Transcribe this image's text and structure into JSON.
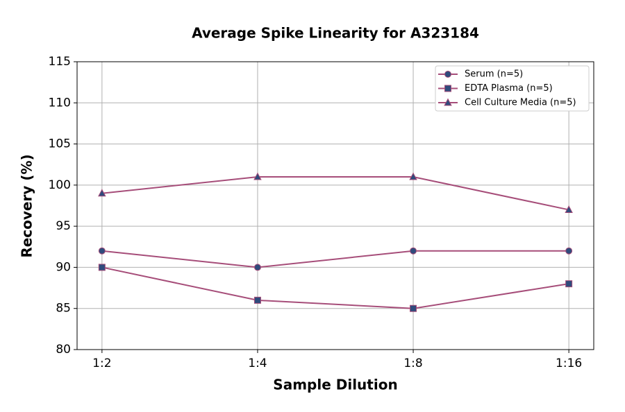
{
  "chart_data": {
    "type": "line",
    "title": "Average Spike Linearity for A323184",
    "x_label": "Sample Dilution",
    "y_label": "Recovery (%)",
    "categories": [
      "1:2",
      "1:4",
      "1:8",
      "1:16"
    ],
    "series": [
      {
        "name": "Serum (n=5)",
        "color": "#a64d79",
        "marker_color": "#2f4b7c",
        "marker": "circle",
        "values": [
          92,
          90,
          92,
          92
        ]
      },
      {
        "name": "EDTA Plasma (n=5)",
        "color": "#a64d79",
        "marker_color": "#2f4b7c",
        "marker": "square",
        "values": [
          90,
          86,
          85,
          88
        ]
      },
      {
        "name": "Cell Culture Media (n=5)",
        "color": "#a64d79",
        "marker_color": "#2f4b7c",
        "marker": "triangle",
        "values": [
          99,
          101,
          101,
          97
        ]
      }
    ],
    "ylim": [
      80,
      115
    ],
    "yticks": [
      80,
      85,
      90,
      95,
      100,
      105,
      110,
      115
    ],
    "grid": true,
    "legend": "upper right"
  }
}
